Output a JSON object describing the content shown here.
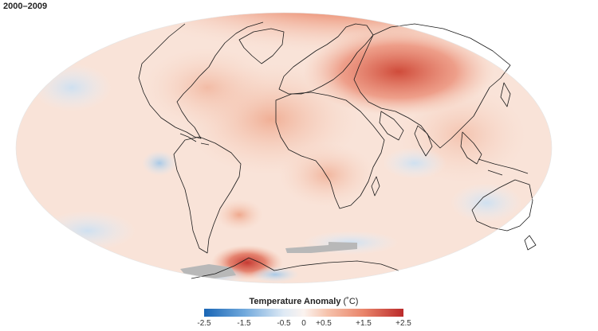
{
  "period": "2000–2009",
  "legend": {
    "title": "Temperature Anomaly",
    "unit": "(˚C)",
    "ticks": [
      {
        "label": "-2.5",
        "value": -2.5
      },
      {
        "label": "-1.5",
        "value": -1.5
      },
      {
        "label": "-0.5",
        "value": -0.5
      },
      {
        "label": "0",
        "value": 0
      },
      {
        "label": "+0.5",
        "value": 0.5
      },
      {
        "label": "+1.5",
        "value": 1.5
      },
      {
        "label": "+2.5",
        "value": 2.5
      }
    ]
  },
  "colors": {
    "cold": "#1a66b5",
    "neutral": "#fbf3ef",
    "warm": "#bb2b2b",
    "no_data": "#b8b8b8",
    "coastline": "#1a1a1a"
  }
}
